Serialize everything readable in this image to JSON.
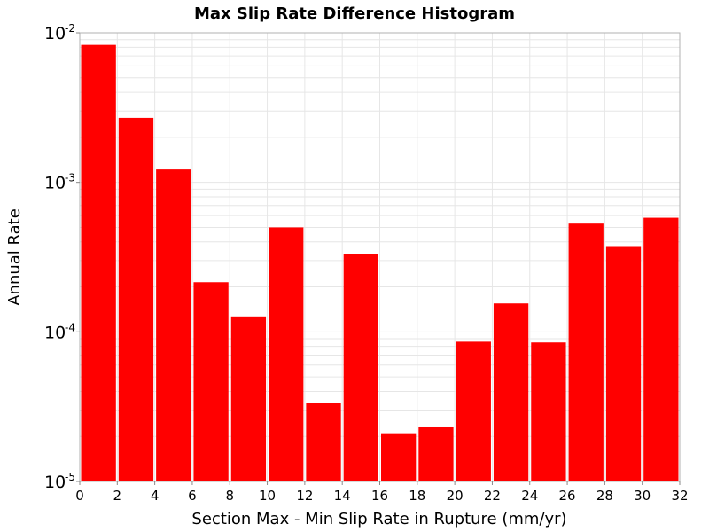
{
  "chart_data": {
    "type": "bar",
    "title": "Max Slip Rate Difference Histogram",
    "xlabel": "Section Max - Min Slip Rate in Rupture (mm/yr)",
    "ylabel": "Annual Rate",
    "x_bin_width": 2,
    "x": [
      1,
      3,
      5,
      7,
      9,
      11,
      13,
      15,
      17,
      19,
      21,
      23,
      25,
      27,
      29,
      31
    ],
    "values": [
      0.0083,
      0.0027,
      0.00122,
      0.000215,
      0.000127,
      0.0005,
      3.35e-05,
      0.00033,
      2.1e-05,
      2.3e-05,
      8.6e-05,
      0.000155,
      8.5e-05,
      0.00053,
      0.00037,
      0.00058
    ],
    "xlim": [
      0,
      32
    ],
    "ylim": [
      1e-05,
      0.01
    ],
    "yscale": "log",
    "x_ticks": [
      "0",
      "2",
      "4",
      "6",
      "8",
      "10",
      "12",
      "14",
      "16",
      "18",
      "20",
      "22",
      "24",
      "26",
      "28",
      "30",
      "32"
    ],
    "y_ticks": [
      {
        "base": "10",
        "exp": "-5"
      },
      {
        "base": "10",
        "exp": "-4"
      },
      {
        "base": "10",
        "exp": "-3"
      },
      {
        "base": "10",
        "exp": "-2"
      }
    ],
    "grid": true,
    "colors": {
      "bar": "#ff0000",
      "grid": "#e6e6e6",
      "frame": "#b0b0b0"
    }
  }
}
